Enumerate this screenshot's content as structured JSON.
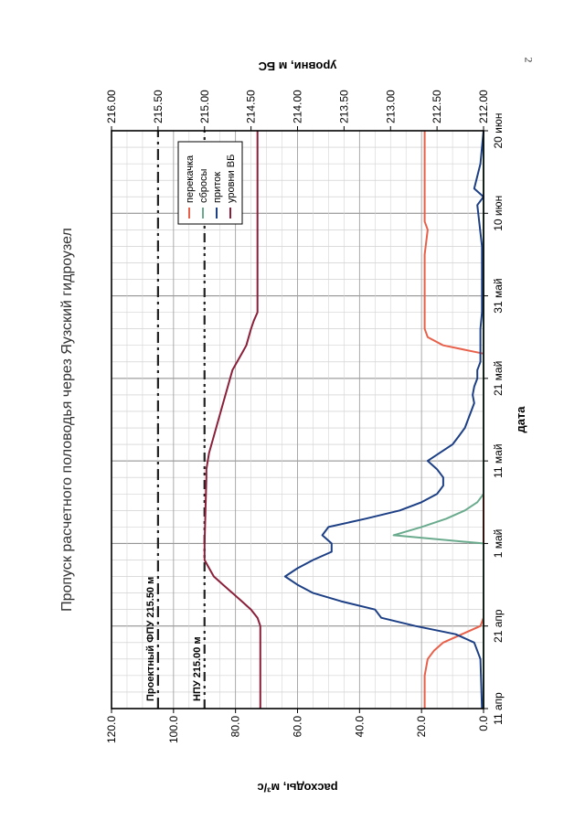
{
  "page_number": "2",
  "chart_data": {
    "type": "line",
    "title": "Пропуск расчетного половодья через Яузский гидроузел",
    "xlabel": "дата",
    "ylabel_left": "расходы, м³/с",
    "ylabel_right": "уровни, м БС",
    "x_ticks": [
      "11 апр",
      "21 апр",
      "1 май",
      "11 май",
      "21 май",
      "31 май",
      "10 июн",
      "20 июн"
    ],
    "ylim_left": [
      0,
      120
    ],
    "y_ticks_left": [
      "0.0",
      "20.0",
      "40.0",
      "60.0",
      "80.0",
      "100.0",
      "120.0"
    ],
    "ylim_right": [
      212.0,
      216.0
    ],
    "y_ticks_right": [
      "212.00",
      "212.50",
      "213.00",
      "213.50",
      "214.00",
      "214.50",
      "215.00",
      "215.50",
      "216.00"
    ],
    "grid": true,
    "legend_position": "top-right",
    "annotations": [
      {
        "text": "Проектный ФПУ 215.50 м",
        "value": 215.5
      },
      {
        "text": "НПУ 215.00 м",
        "value": 215.0
      }
    ],
    "series": [
      {
        "name": "перекачка",
        "color": "#e8604a",
        "axis": "left",
        "points": [
          [
            0,
            19
          ],
          [
            4,
            19
          ],
          [
            6,
            18
          ],
          [
            7,
            16
          ],
          [
            8,
            13
          ],
          [
            9,
            7
          ],
          [
            10,
            1
          ],
          [
            11,
            0
          ],
          [
            43,
            0
          ],
          [
            44,
            13
          ],
          [
            45,
            18
          ],
          [
            46,
            19
          ],
          [
            55,
            19
          ],
          [
            58,
            18
          ],
          [
            59,
            19
          ],
          [
            63,
            19
          ],
          [
            70,
            19
          ]
        ]
      },
      {
        "name": "сбросы",
        "color": "#6aab8e",
        "axis": "left",
        "points": [
          [
            0,
            0
          ],
          [
            20,
            0
          ],
          [
            21,
            29
          ],
          [
            22,
            20
          ],
          [
            23,
            12
          ],
          [
            24,
            6
          ],
          [
            25,
            2
          ],
          [
            26,
            0
          ],
          [
            70,
            0
          ]
        ]
      },
      {
        "name": "приток",
        "color": "#1c3f85",
        "axis": "left",
        "points": [
          [
            0,
            0.5
          ],
          [
            6,
            1
          ],
          [
            8,
            3
          ],
          [
            9,
            9
          ],
          [
            10,
            22
          ],
          [
            11,
            33
          ],
          [
            12,
            35
          ],
          [
            13,
            46
          ],
          [
            14,
            55
          ],
          [
            15,
            60
          ],
          [
            16,
            64
          ],
          [
            17,
            60
          ],
          [
            18,
            55
          ],
          [
            19,
            49
          ],
          [
            20,
            49
          ],
          [
            21,
            52
          ],
          [
            22,
            50
          ],
          [
            23,
            38
          ],
          [
            24,
            27
          ],
          [
            25,
            20
          ],
          [
            26,
            15
          ],
          [
            27,
            13
          ],
          [
            28,
            13
          ],
          [
            29,
            15
          ],
          [
            30,
            18
          ],
          [
            31,
            14
          ],
          [
            32,
            10
          ],
          [
            33,
            8
          ],
          [
            34,
            6
          ],
          [
            35,
            5
          ],
          [
            36,
            4
          ],
          [
            37,
            3
          ],
          [
            38,
            3.5
          ],
          [
            39,
            3
          ],
          [
            40,
            2
          ],
          [
            41,
            2
          ],
          [
            42,
            1
          ],
          [
            44,
            1
          ],
          [
            46,
            1
          ],
          [
            48,
            0.5
          ],
          [
            53,
            0.5
          ],
          [
            56,
            0.5
          ],
          [
            61,
            2
          ],
          [
            62,
            0
          ],
          [
            63,
            3
          ],
          [
            66,
            1
          ],
          [
            70,
            0
          ]
        ]
      },
      {
        "name": "уровни ВБ",
        "color": "#8b1f3a",
        "axis": "right",
        "points": [
          [
            0,
            214.4
          ],
          [
            10,
            214.4
          ],
          [
            11,
            214.43
          ],
          [
            12,
            214.5
          ],
          [
            13,
            214.6
          ],
          [
            14,
            214.7
          ],
          [
            15,
            214.8
          ],
          [
            16,
            214.9
          ],
          [
            17,
            214.95
          ],
          [
            18,
            215.0
          ],
          [
            19,
            215.0
          ],
          [
            20,
            215.0
          ],
          [
            28,
            214.98
          ],
          [
            29,
            214.98
          ],
          [
            31,
            214.95
          ],
          [
            33,
            214.9
          ],
          [
            35,
            214.85
          ],
          [
            37,
            214.8
          ],
          [
            39,
            214.75
          ],
          [
            41,
            214.7
          ],
          [
            43,
            214.6
          ],
          [
            44,
            214.55
          ],
          [
            46,
            214.5
          ],
          [
            47,
            214.47
          ],
          [
            48,
            214.43
          ],
          [
            70,
            214.43
          ]
        ]
      }
    ]
  }
}
